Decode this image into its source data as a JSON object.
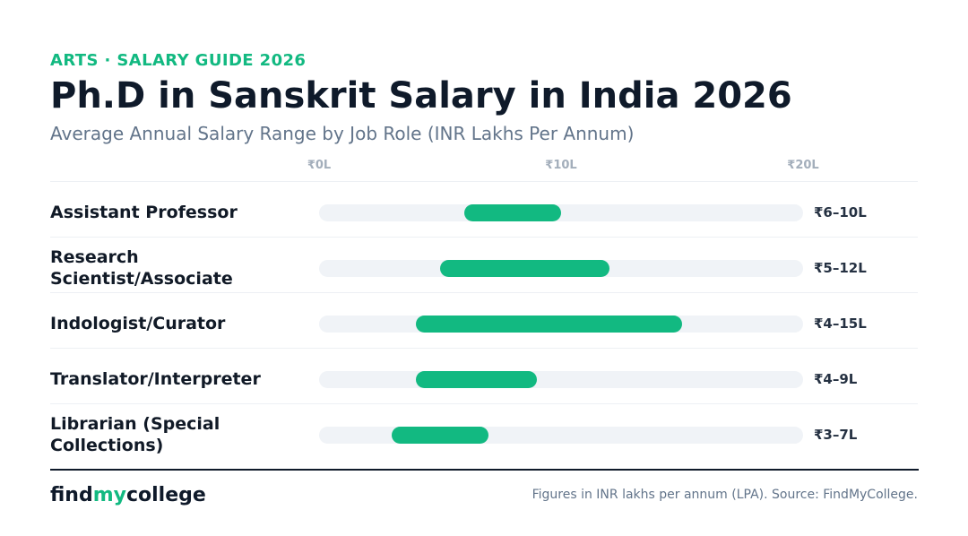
{
  "header": {
    "kicker": "ARTS · SALARY GUIDE 2026",
    "title": "Ph.D in Sanskrit Salary in India 2026",
    "subtitle": "Average Annual Salary Range by Job Role (INR Lakhs Per Annum)"
  },
  "chart_data": {
    "type": "bar",
    "orientation": "horizontal-range",
    "xlim": [
      0,
      20
    ],
    "ticks": [
      {
        "value": 0,
        "label": "₹0L"
      },
      {
        "value": 10,
        "label": "₹10L"
      },
      {
        "value": 20,
        "label": "₹20L"
      }
    ],
    "rows": [
      {
        "label": "Assistant Professor",
        "low": 6,
        "high": 10,
        "value_label": "₹6–10L"
      },
      {
        "label": "Research Scientist/Associate",
        "low": 5,
        "high": 12,
        "value_label": "₹5–12L"
      },
      {
        "label": "Indologist/Curator",
        "low": 4,
        "high": 15,
        "value_label": "₹4–15L"
      },
      {
        "label": "Translator/Interpreter",
        "low": 4,
        "high": 9,
        "value_label": "₹4–9L"
      },
      {
        "label": "Librarian (Special Collections)",
        "low": 3,
        "high": 7,
        "value_label": "₹3–7L"
      }
    ],
    "bar_color": "#12b981",
    "track_color": "#f0f3f7"
  },
  "footer": {
    "logo_part1": "find",
    "logo_part2": "my",
    "logo_part3": "college",
    "source": "Figures in INR lakhs per annum (LPA). Source: FindMyCollege."
  }
}
